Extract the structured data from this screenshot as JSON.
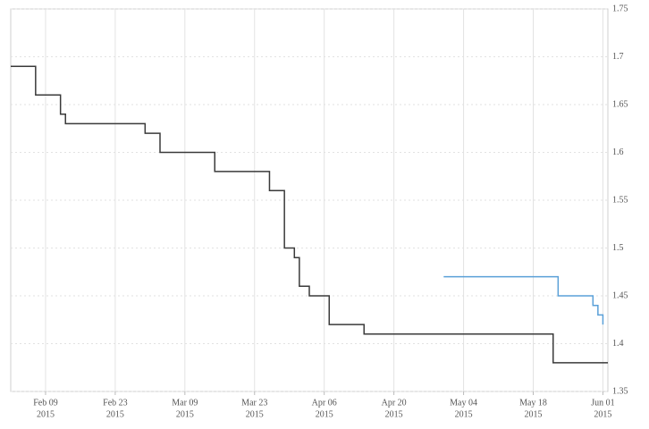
{
  "chart_data": {
    "type": "line",
    "step": "after",
    "grid": true,
    "xlim": [
      "2015-02-02",
      "2015-06-02"
    ],
    "xticks": [
      {
        "value": "2015-02-09",
        "label": [
          "Feb 09",
          "2015"
        ]
      },
      {
        "value": "2015-02-23",
        "label": [
          "Feb 23",
          "2015"
        ]
      },
      {
        "value": "2015-03-09",
        "label": [
          "Mar 09",
          "2015"
        ]
      },
      {
        "value": "2015-03-23",
        "label": [
          "Mar 23",
          "2015"
        ]
      },
      {
        "value": "2015-04-06",
        "label": [
          "Apr 06",
          "2015"
        ]
      },
      {
        "value": "2015-04-20",
        "label": [
          "Apr 20",
          "2015"
        ]
      },
      {
        "value": "2015-05-04",
        "label": [
          "May 04",
          "2015"
        ]
      },
      {
        "value": "2015-05-18",
        "label": [
          "May 18",
          "2015"
        ]
      },
      {
        "value": "2015-06-01",
        "label": [
          "Jun 01",
          "2015"
        ]
      }
    ],
    "ylim": [
      1.35,
      1.75
    ],
    "yticks": [
      1.35,
      1.4,
      1.45,
      1.5,
      1.55,
      1.6,
      1.65,
      1.7,
      1.75
    ],
    "series": [
      {
        "color": "#3a3a3a",
        "x": [
          "2015-02-02",
          "2015-02-07",
          "2015-02-12",
          "2015-02-13",
          "2015-03-01",
          "2015-03-04",
          "2015-03-15",
          "2015-03-26",
          "2015-03-29",
          "2015-03-31",
          "2015-04-01",
          "2015-04-03",
          "2015-04-07",
          "2015-04-14",
          "2015-05-22",
          "2015-06-02"
        ],
        "values": [
          1.69,
          1.66,
          1.64,
          1.63,
          1.62,
          1.6,
          1.58,
          1.56,
          1.5,
          1.49,
          1.46,
          1.45,
          1.42,
          1.41,
          1.38,
          1.38
        ]
      },
      {
        "color": "#5aa0d8",
        "x": [
          "2015-04-30",
          "2015-05-23",
          "2015-05-30",
          "2015-05-31",
          "2015-06-01"
        ],
        "values": [
          1.47,
          1.45,
          1.44,
          1.43,
          1.42
        ]
      }
    ]
  }
}
